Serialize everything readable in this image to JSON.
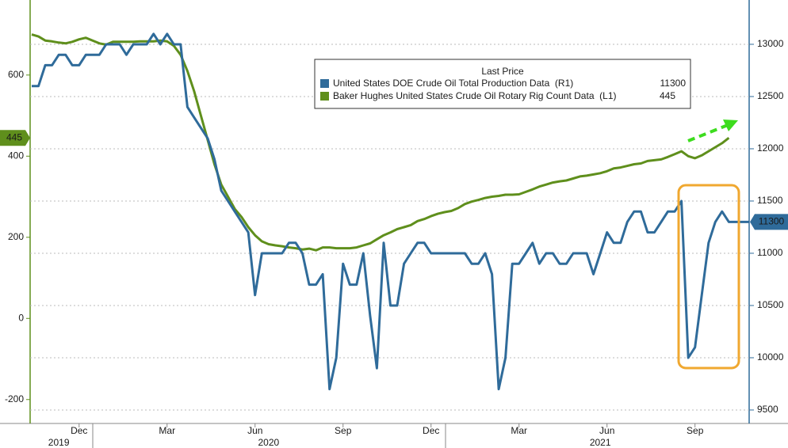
{
  "chart_data": {
    "type": "line",
    "legend_title": "Last Price",
    "categories": [
      null,
      null,
      null,
      null,
      null,
      null,
      null,
      "Dec",
      null,
      null,
      null,
      null,
      null,
      null,
      null,
      null,
      null,
      null,
      null,
      null,
      "Mar",
      null,
      null,
      null,
      null,
      null,
      null,
      null,
      null,
      null,
      null,
      null,
      null,
      "Jun",
      null,
      null,
      null,
      null,
      null,
      null,
      null,
      null,
      null,
      null,
      null,
      null,
      "Sep",
      null,
      null,
      null,
      null,
      null,
      null,
      null,
      null,
      null,
      null,
      null,
      null,
      "Dec",
      null,
      null,
      null,
      null,
      null,
      null,
      null,
      null,
      null,
      null,
      null,
      null,
      "Mar",
      null,
      null,
      null,
      null,
      null,
      null,
      null,
      null,
      null,
      null,
      null,
      null,
      "Jun",
      null,
      null,
      null,
      null,
      null,
      null,
      null,
      null,
      null,
      null,
      null,
      null,
      "Sep",
      null,
      null,
      null,
      null,
      null,
      null,
      null,
      null
    ],
    "years": [
      null,
      null,
      null,
      null,
      "2019",
      null,
      null,
      null,
      null,
      null,
      null,
      null,
      null,
      null,
      null,
      null,
      null,
      null,
      null,
      null,
      null,
      null,
      null,
      null,
      null,
      null,
      null,
      null,
      null,
      null,
      null,
      null,
      null,
      null,
      null,
      "2020",
      null,
      null,
      null,
      null,
      null,
      null,
      null,
      null,
      null,
      null,
      null,
      null,
      null,
      null,
      null,
      null,
      null,
      null,
      null,
      null,
      null,
      null,
      null,
      null,
      null,
      null,
      null,
      null,
      null,
      null,
      null,
      null,
      null,
      null,
      null,
      null,
      null,
      null,
      null,
      null,
      null,
      null,
      null,
      null,
      null,
      null,
      null,
      null,
      "2021",
      null,
      null,
      null,
      null,
      null,
      null,
      null,
      null,
      null,
      null,
      null,
      null,
      null,
      null,
      null,
      null,
      null,
      null,
      null,
      null,
      null,
      null
    ],
    "series": [
      {
        "name": "United States DOE Crude Oil Total Production Data  (R1)",
        "color": "#2f6b9a",
        "axis": "y2",
        "values": [
          12600,
          12600,
          12800,
          12800,
          12900,
          12900,
          12800,
          12800,
          12900,
          12900,
          12900,
          13000,
          13000,
          13000,
          12900,
          13000,
          13000,
          13000,
          13100,
          13000,
          13100,
          13000,
          13000,
          12400,
          12300,
          12200,
          12100,
          11900,
          11600,
          11500,
          11400,
          11300,
          11200,
          10600,
          11000,
          11000,
          11000,
          11000,
          11100,
          11100,
          11000,
          10700,
          10700,
          10800,
          9700,
          10000,
          10900,
          10700,
          10700,
          11000,
          10400,
          9900,
          11100,
          10500,
          10500,
          10900,
          11000,
          11100,
          11100,
          11000,
          11000,
          11000,
          11000,
          11000,
          11000,
          10900,
          10900,
          11000,
          10800,
          9700,
          10000,
          10900,
          10900,
          11000,
          11100,
          10900,
          11000,
          11000,
          10900,
          10900,
          11000,
          11000,
          11000,
          10800,
          11000,
          11200,
          11100,
          11100,
          11300,
          11400,
          11400,
          11200,
          11200,
          11300,
          11400,
          11400,
          11500,
          10000,
          10100,
          10600,
          11100,
          11300,
          11400,
          11300,
          11300,
          11300,
          11300
        ]
      },
      {
        "name": "Baker Hughes United States Crude Oil Rotary Rig Count Data  (L1)",
        "color": "#5f8f1c",
        "axis": "y",
        "values": [
          700,
          695,
          685,
          683,
          680,
          678,
          682,
          688,
          692,
          685,
          678,
          675,
          682,
          682,
          682,
          682,
          683,
          683,
          683,
          685,
          683,
          672,
          650,
          610,
          560,
          500,
          440,
          380,
          330,
          300,
          270,
          250,
          225,
          205,
          190,
          183,
          180,
          178,
          175,
          173,
          170,
          172,
          168,
          175,
          175,
          173,
          173,
          173,
          175,
          180,
          185,
          195,
          205,
          212,
          220,
          225,
          230,
          240,
          245,
          252,
          258,
          262,
          265,
          272,
          282,
          288,
          292,
          297,
          300,
          302,
          305,
          305,
          306,
          312,
          318,
          325,
          330,
          335,
          338,
          340,
          345,
          350,
          352,
          355,
          358,
          363,
          370,
          372,
          376,
          380,
          382,
          388,
          390,
          392,
          398,
          405,
          412,
          400,
          395,
          402,
          412,
          422,
          432,
          445,
          null,
          null,
          null
        ]
      }
    ],
    "ylim": [
      -259,
      785
    ],
    "yticks": [
      -200,
      0,
      200,
      400,
      600
    ],
    "y2lim": [
      9371,
      13424
    ],
    "y2ticks": [
      9500,
      10000,
      10500,
      11000,
      11500,
      12000,
      12500,
      13000
    ],
    "grid": true
  }
}
